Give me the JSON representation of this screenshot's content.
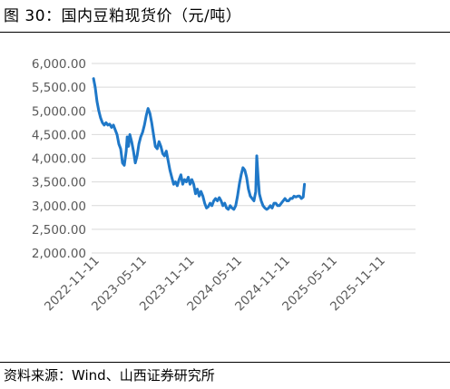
{
  "header": {
    "title": "图 30：国内豆粕现货价（元/吨）"
  },
  "footer": {
    "source": "资料来源：Wind、山西证券研究所"
  },
  "colors": {
    "line": "#1f78c8",
    "grid": "#d9d9d9",
    "axis_text": "#595959"
  },
  "chart_data": {
    "type": "line",
    "title": "国内豆粕现货价（元/吨）",
    "xlabel": "",
    "ylabel": "",
    "ylim": [
      2000,
      6000
    ],
    "yticks": [
      "6,000.00",
      "5,500.00",
      "5,000.00",
      "4,500.00",
      "4,000.00",
      "3,500.00",
      "3,000.00",
      "2,500.00",
      "2,000.00"
    ],
    "ytick_values": [
      6000,
      5500,
      5000,
      4500,
      4000,
      3500,
      3000,
      2500,
      2000
    ],
    "xticks": [
      "2022-11-11",
      "2023-05-11",
      "2023-11-11",
      "2024-05-11",
      "2024-11-11",
      "2025-05-11",
      "2025-11-11"
    ],
    "grid": true,
    "series": [
      {
        "points": [
          [
            "2022-11-01",
            5680
          ],
          [
            "2022-11-07",
            5500
          ],
          [
            "2022-11-14",
            5200
          ],
          [
            "2022-11-21",
            5000
          ],
          [
            "2022-11-28",
            4850
          ],
          [
            "2022-12-05",
            4750
          ],
          [
            "2022-12-12",
            4700
          ],
          [
            "2022-12-19",
            4750
          ],
          [
            "2022-12-26",
            4700
          ],
          [
            "2023-01-02",
            4720
          ],
          [
            "2023-01-09",
            4650
          ],
          [
            "2023-01-16",
            4700
          ],
          [
            "2023-01-23",
            4600
          ],
          [
            "2023-01-30",
            4500
          ],
          [
            "2023-02-06",
            4300
          ],
          [
            "2023-02-13",
            4200
          ],
          [
            "2023-02-20",
            3900
          ],
          [
            "2023-02-27",
            3850
          ],
          [
            "2023-03-06",
            4150
          ],
          [
            "2023-03-10",
            4450
          ],
          [
            "2023-03-15",
            4250
          ],
          [
            "2023-03-20",
            4500
          ],
          [
            "2023-03-27",
            4350
          ],
          [
            "2023-04-03",
            4150
          ],
          [
            "2023-04-10",
            3900
          ],
          [
            "2023-04-17",
            4050
          ],
          [
            "2023-04-24",
            4300
          ],
          [
            "2023-05-01",
            4450
          ],
          [
            "2023-05-08",
            4550
          ],
          [
            "2023-05-15",
            4700
          ],
          [
            "2023-05-22",
            4900
          ],
          [
            "2023-05-29",
            5050
          ],
          [
            "2023-06-05",
            4950
          ],
          [
            "2023-06-12",
            4750
          ],
          [
            "2023-06-19",
            4500
          ],
          [
            "2023-06-26",
            4250
          ],
          [
            "2023-07-03",
            4200
          ],
          [
            "2023-07-10",
            4350
          ],
          [
            "2023-07-17",
            4250
          ],
          [
            "2023-07-24",
            4100
          ],
          [
            "2023-07-31",
            4050
          ],
          [
            "2023-08-07",
            4150
          ],
          [
            "2023-08-14",
            3950
          ],
          [
            "2023-08-21",
            3750
          ],
          [
            "2023-08-28",
            3600
          ],
          [
            "2023-09-04",
            3450
          ],
          [
            "2023-09-11",
            3500
          ],
          [
            "2023-09-18",
            3420
          ],
          [
            "2023-09-25",
            3550
          ],
          [
            "2023-10-02",
            3650
          ],
          [
            "2023-10-09",
            3450
          ],
          [
            "2023-10-16",
            3550
          ],
          [
            "2023-10-23",
            3500
          ],
          [
            "2023-10-30",
            3600
          ],
          [
            "2023-11-06",
            3450
          ],
          [
            "2023-11-13",
            3550
          ],
          [
            "2023-11-20",
            3450
          ],
          [
            "2023-11-27",
            3250
          ],
          [
            "2023-12-04",
            3350
          ],
          [
            "2023-12-11",
            3200
          ],
          [
            "2023-12-18",
            3300
          ],
          [
            "2023-12-25",
            3200
          ],
          [
            "2024-01-01",
            3050
          ],
          [
            "2024-01-08",
            2950
          ],
          [
            "2024-01-15",
            2980
          ],
          [
            "2024-01-22",
            3050
          ],
          [
            "2024-01-29",
            3000
          ],
          [
            "2024-02-05",
            3100
          ],
          [
            "2024-02-12",
            3150
          ],
          [
            "2024-02-19",
            3100
          ],
          [
            "2024-02-26",
            3170
          ],
          [
            "2024-03-04",
            3100
          ],
          [
            "2024-03-11",
            3000
          ],
          [
            "2024-03-18",
            3050
          ],
          [
            "2024-03-25",
            2950
          ],
          [
            "2024-04-01",
            2920
          ],
          [
            "2024-04-08",
            3000
          ],
          [
            "2024-04-15",
            2950
          ],
          [
            "2024-04-22",
            2920
          ],
          [
            "2024-04-29",
            3000
          ],
          [
            "2024-05-06",
            3200
          ],
          [
            "2024-05-13",
            3450
          ],
          [
            "2024-05-20",
            3650
          ],
          [
            "2024-05-27",
            3800
          ],
          [
            "2024-06-03",
            3750
          ],
          [
            "2024-06-10",
            3600
          ],
          [
            "2024-06-17",
            3350
          ],
          [
            "2024-06-24",
            3200
          ],
          [
            "2024-07-01",
            3150
          ],
          [
            "2024-07-08",
            3100
          ],
          [
            "2024-07-15",
            3300
          ],
          [
            "2024-07-19",
            4050
          ],
          [
            "2024-07-24",
            3600
          ],
          [
            "2024-07-29",
            3250
          ],
          [
            "2024-08-05",
            3100
          ],
          [
            "2024-08-12",
            3000
          ],
          [
            "2024-08-19",
            2950
          ],
          [
            "2024-08-26",
            2920
          ],
          [
            "2024-09-02",
            2950
          ],
          [
            "2024-09-09",
            3000
          ],
          [
            "2024-09-16",
            2950
          ],
          [
            "2024-09-23",
            3050
          ],
          [
            "2024-09-30",
            3050
          ],
          [
            "2024-10-07",
            3000
          ],
          [
            "2024-10-14",
            3000
          ],
          [
            "2024-10-21",
            3050
          ],
          [
            "2024-10-28",
            3100
          ],
          [
            "2024-11-04",
            3150
          ],
          [
            "2024-11-11",
            3100
          ],
          [
            "2024-11-18",
            3100
          ],
          [
            "2024-11-25",
            3150
          ],
          [
            "2024-12-02",
            3150
          ],
          [
            "2024-12-09",
            3200
          ],
          [
            "2024-12-16",
            3180
          ],
          [
            "2024-12-23",
            3200
          ],
          [
            "2024-12-30",
            3200
          ],
          [
            "2025-01-06",
            3150
          ],
          [
            "2025-01-13",
            3180
          ],
          [
            "2025-01-18",
            3450
          ]
        ]
      }
    ]
  }
}
